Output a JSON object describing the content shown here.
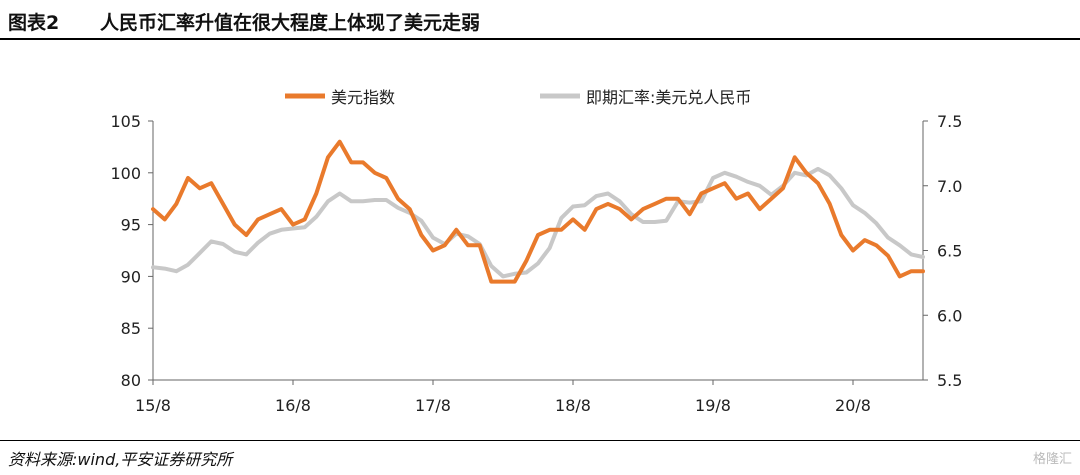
{
  "header": {
    "fig_label": "图表2",
    "title": "人民币汇率升值在很大程度上体现了美元走弱"
  },
  "footer": {
    "source": "资料来源:wind,平安证券研究所",
    "watermark": "格隆汇"
  },
  "chart_data": {
    "type": "line",
    "legend_position": "top",
    "grid": false,
    "x_ticks": [
      "15/8",
      "16/8",
      "17/8",
      "18/8",
      "19/8",
      "20/8"
    ],
    "xlim": [
      "2015-08",
      "2021-02"
    ],
    "y_left": {
      "ticks": [
        "80",
        "85",
        "90",
        "95",
        "100",
        "105"
      ],
      "lim": [
        80,
        105
      ]
    },
    "y_right": {
      "ticks": [
        "5.5",
        "6.0",
        "6.5",
        "7.0",
        "7.5"
      ],
      "lim": [
        5.5,
        7.5
      ]
    },
    "series": [
      {
        "name": "美元指数",
        "axis": "left",
        "color": "#E97A2C",
        "x": [
          "2015-08",
          "2015-09",
          "2015-10",
          "2015-11",
          "2015-12",
          "2016-01",
          "2016-02",
          "2016-03",
          "2016-04",
          "2016-05",
          "2016-06",
          "2016-07",
          "2016-08",
          "2016-09",
          "2016-10",
          "2016-11",
          "2016-12",
          "2017-01",
          "2017-02",
          "2017-03",
          "2017-04",
          "2017-05",
          "2017-06",
          "2017-07",
          "2017-08",
          "2017-09",
          "2017-10",
          "2017-11",
          "2017-12",
          "2018-01",
          "2018-02",
          "2018-03",
          "2018-04",
          "2018-05",
          "2018-06",
          "2018-07",
          "2018-08",
          "2018-09",
          "2018-10",
          "2018-11",
          "2018-12",
          "2019-01",
          "2019-02",
          "2019-03",
          "2019-04",
          "2019-05",
          "2019-06",
          "2019-07",
          "2019-08",
          "2019-09",
          "2019-10",
          "2019-11",
          "2019-12",
          "2020-01",
          "2020-02",
          "2020-03",
          "2020-04",
          "2020-05",
          "2020-06",
          "2020-07",
          "2020-08",
          "2020-09",
          "2020-10",
          "2020-11",
          "2020-12",
          "2021-01",
          "2021-02"
        ],
        "values": [
          96.5,
          95.5,
          97.0,
          99.5,
          98.5,
          99.0,
          97.0,
          95.0,
          94.0,
          95.5,
          96.0,
          96.5,
          95.0,
          95.5,
          98.0,
          101.5,
          103.0,
          101.0,
          101.0,
          100.0,
          99.5,
          97.5,
          96.5,
          94.0,
          92.5,
          93.0,
          94.5,
          93.0,
          93.0,
          89.5,
          89.5,
          89.5,
          91.5,
          94.0,
          94.5,
          94.5,
          95.5,
          94.5,
          96.5,
          97.0,
          96.5,
          95.5,
          96.5,
          97.0,
          97.5,
          97.5,
          96.0,
          98.0,
          98.5,
          99.0,
          97.5,
          98.0,
          96.5,
          97.5,
          98.5,
          101.5,
          100.0,
          99.0,
          97.0,
          94.0,
          92.5,
          93.5,
          93.0,
          92.0,
          90.0,
          90.5,
          90.5
        ]
      },
      {
        "name": "即期汇率:美元兑人民币",
        "axis": "right",
        "color": "#C8C8C8",
        "x": [
          "2015-08",
          "2015-09",
          "2015-10",
          "2015-11",
          "2015-12",
          "2016-01",
          "2016-02",
          "2016-03",
          "2016-04",
          "2016-05",
          "2016-06",
          "2016-07",
          "2016-08",
          "2016-09",
          "2016-10",
          "2016-11",
          "2016-12",
          "2017-01",
          "2017-02",
          "2017-03",
          "2017-04",
          "2017-05",
          "2017-06",
          "2017-07",
          "2017-08",
          "2017-09",
          "2017-10",
          "2017-11",
          "2017-12",
          "2018-01",
          "2018-02",
          "2018-03",
          "2018-04",
          "2018-05",
          "2018-06",
          "2018-07",
          "2018-08",
          "2018-09",
          "2018-10",
          "2018-11",
          "2018-12",
          "2019-01",
          "2019-02",
          "2019-03",
          "2019-04",
          "2019-05",
          "2019-06",
          "2019-07",
          "2019-08",
          "2019-09",
          "2019-10",
          "2019-11",
          "2019-12",
          "2020-01",
          "2020-02",
          "2020-03",
          "2020-04",
          "2020-05",
          "2020-06",
          "2020-07",
          "2020-08",
          "2020-09",
          "2020-10",
          "2020-11",
          "2020-12",
          "2021-01",
          "2021-02"
        ],
        "values": [
          6.37,
          6.36,
          6.34,
          6.39,
          6.48,
          6.57,
          6.55,
          6.49,
          6.47,
          6.56,
          6.63,
          6.66,
          6.67,
          6.68,
          6.76,
          6.88,
          6.94,
          6.88,
          6.88,
          6.89,
          6.89,
          6.83,
          6.79,
          6.73,
          6.6,
          6.55,
          6.63,
          6.61,
          6.55,
          6.38,
          6.3,
          6.32,
          6.33,
          6.4,
          6.52,
          6.75,
          6.84,
          6.85,
          6.92,
          6.94,
          6.88,
          6.78,
          6.72,
          6.72,
          6.73,
          6.88,
          6.87,
          6.88,
          7.06,
          7.1,
          7.07,
          7.03,
          7.0,
          6.93,
          7.0,
          7.1,
          7.08,
          7.13,
          7.08,
          6.98,
          6.85,
          6.79,
          6.71,
          6.6,
          6.54,
          6.47,
          6.45
        ]
      }
    ]
  }
}
